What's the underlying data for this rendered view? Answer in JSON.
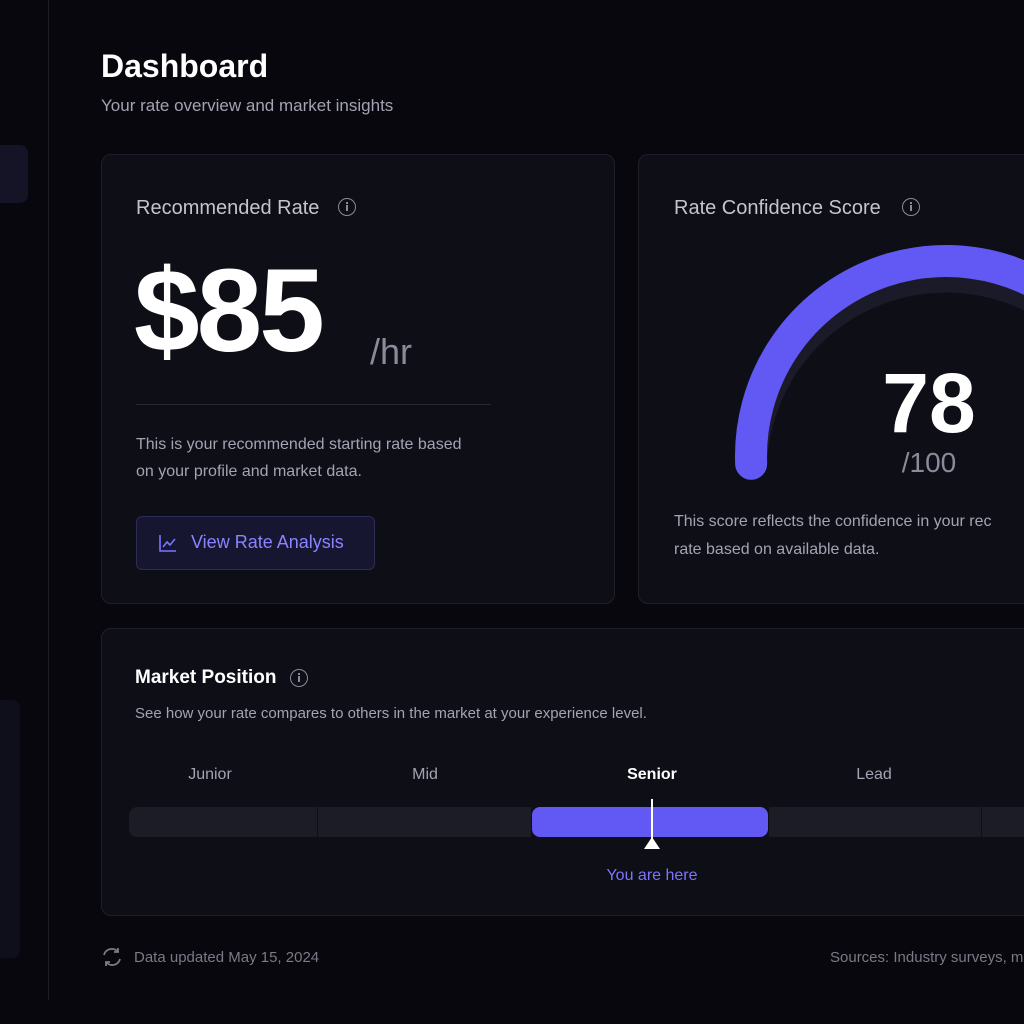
{
  "header": {
    "title": "Dashboard",
    "subtitle": "Your rate overview and market insights"
  },
  "rate_card": {
    "title": "Recommended Rate",
    "amount": "$85",
    "unit": "/hr",
    "description": "This is your recommended starting rate based on your profile and market data.",
    "button": "View Rate Analysis"
  },
  "confidence_card": {
    "title": "Rate Confidence Score",
    "score": 78,
    "max": {
      "value": 100,
      "label": "/100"
    },
    "description": [
      "This score reflects the confidence in your rec",
      "rate based on available data."
    ]
  },
  "market_card": {
    "title": "Market Position",
    "description": "See how your rate compares to others in the market at your experience level.",
    "levels": [
      "Junior",
      "Mid",
      "Senior",
      "Lead"
    ],
    "marker_label": "You are here"
  },
  "footer": {
    "updated": "Data updated May 15, 2024",
    "sources_label": "Sources:",
    "sources": "Industry surveys, m"
  }
}
